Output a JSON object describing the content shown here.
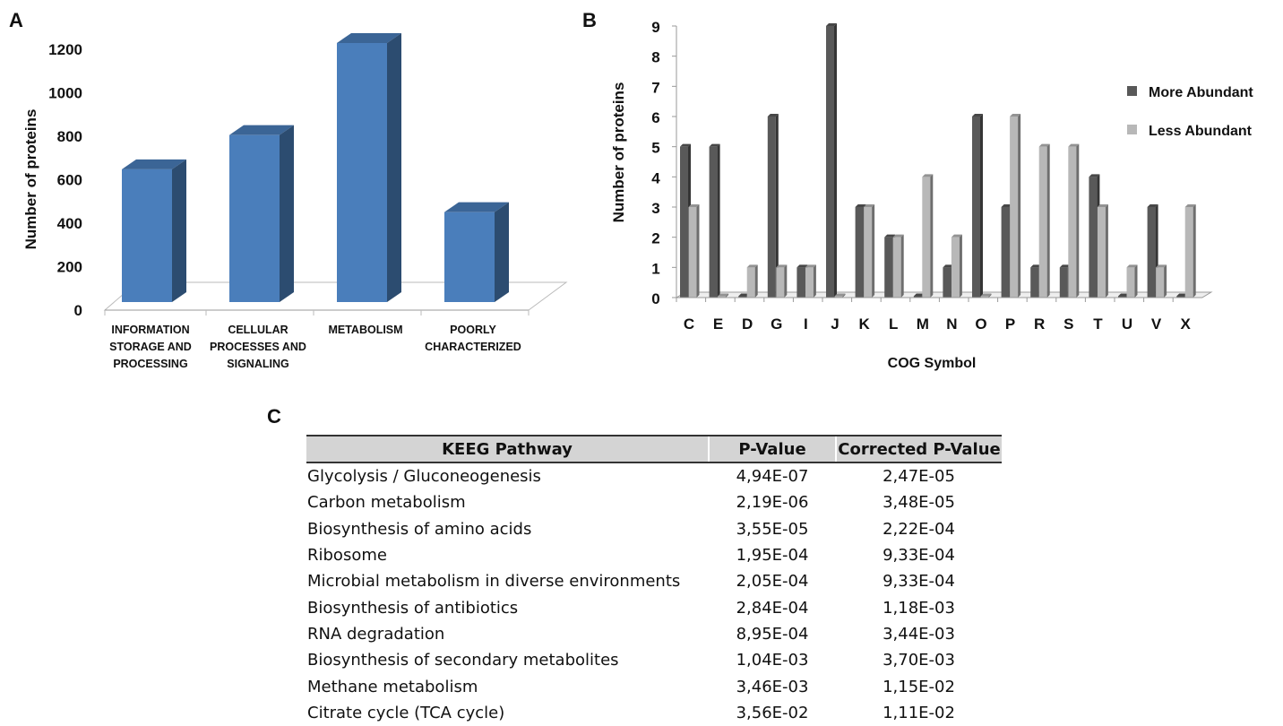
{
  "panels": {
    "a": "A",
    "b": "B",
    "c": "C"
  },
  "chart_data": [
    {
      "type": "bar",
      "ylabel": "Number of proteins",
      "xlabel": "",
      "ylim": [
        0,
        1200
      ],
      "yticks": [
        "0",
        "200",
        "400",
        "600",
        "800",
        "1000",
        "1200"
      ],
      "categories": [
        [
          "INFORMATION",
          "STORAGE AND",
          "PROCESSING"
        ],
        [
          "CELLULAR",
          "PROCESSES AND",
          "SIGNALING"
        ],
        [
          "METABOLISM"
        ],
        [
          "POORLY",
          "CHARACTERIZED"
        ]
      ],
      "values": [
        620,
        780,
        1210,
        420
      ],
      "color": "#4a7ebb",
      "grid": false
    },
    {
      "type": "bar",
      "ylabel": "Number of proteins",
      "xlabel": "COG Symbol",
      "ylim": [
        0,
        9
      ],
      "yticks": [
        "0",
        "1",
        "2",
        "3",
        "4",
        "5",
        "6",
        "7",
        "8",
        "9"
      ],
      "categories": [
        "C",
        "E",
        "D",
        "G",
        "I",
        "J",
        "K",
        "L",
        "M",
        "N",
        "O",
        "P",
        "R",
        "S",
        "T",
        "U",
        "V",
        "X"
      ],
      "series": [
        {
          "name": "More Abundant",
          "color": "#595959",
          "values": [
            5,
            5,
            0,
            6,
            1,
            9,
            3,
            2,
            0,
            1,
            6,
            3,
            1,
            1,
            4,
            0,
            3,
            0
          ]
        },
        {
          "name": "Less Abundant",
          "color": "#b8b8b8",
          "values": [
            3,
            0,
            1,
            1,
            1,
            0,
            3,
            2,
            4,
            2,
            0,
            6,
            5,
            5,
            3,
            1,
            1,
            3
          ]
        }
      ],
      "legend": "right",
      "grid": false
    }
  ],
  "table": {
    "headers": [
      "KEEG Pathway",
      "P-Value",
      "Corrected P-Value"
    ],
    "rows": [
      [
        "Glycolysis / Gluconeogenesis",
        "4,94E-07",
        "2,47E-05"
      ],
      [
        "Carbon metabolism",
        "2,19E-06",
        "3,48E-05"
      ],
      [
        "Biosynthesis of amino acids",
        "3,55E-05",
        "2,22E-04"
      ],
      [
        "Ribosome",
        "1,95E-04",
        "9,33E-04"
      ],
      [
        "Microbial metabolism in diverse environments",
        "2,05E-04",
        "9,33E-04"
      ],
      [
        "Biosynthesis of antibiotics",
        "2,84E-04",
        "1,18E-03"
      ],
      [
        "RNA degradation",
        "8,95E-04",
        "3,44E-03"
      ],
      [
        "Biosynthesis of secondary metabolites",
        "1,04E-03",
        "3,70E-03"
      ],
      [
        "Methane metabolism",
        "3,46E-03",
        "1,15E-02"
      ],
      [
        "Citrate cycle (TCA cycle)",
        "3,56E-02",
        "1,11E-02"
      ]
    ]
  }
}
